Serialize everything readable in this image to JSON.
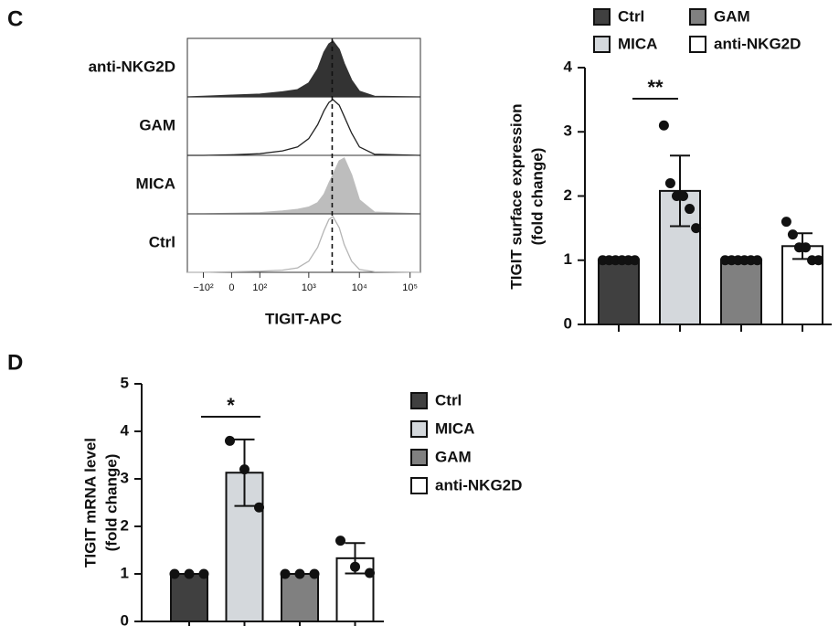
{
  "panel_labels": [
    "C",
    "D"
  ],
  "chart_data": [
    {
      "type": "density",
      "xlabel": "TIGIT-APC",
      "scale": "biexponential",
      "xlim": [
        -220,
        160000
      ],
      "xticks": [
        {
          "value": -100,
          "label": "−10²"
        },
        0,
        {
          "value": 100,
          "label": "10²"
        },
        {
          "value": 1000,
          "label": "10³"
        },
        {
          "value": 10000,
          "label": "10⁴"
        },
        {
          "value": 100000,
          "label": "10⁵"
        }
      ],
      "ylim": [
        0,
        100
      ],
      "x": [
        -100,
        0,
        100,
        300,
        600,
        1000,
        1500,
        2000,
        2500,
        3000,
        4000,
        5000,
        7000,
        10000,
        20000
      ],
      "reference_line": 2900,
      "series": [
        {
          "name": "anti-NKG2D",
          "color": "#333333",
          "filled": true,
          "values": [
            1,
            3,
            5,
            9,
            13,
            25,
            50,
            80,
            95,
            100,
            85,
            60,
            30,
            10,
            1
          ]
        },
        {
          "name": "GAM",
          "color": "#222222",
          "filled": false,
          "values": [
            0,
            1,
            3,
            8,
            15,
            30,
            55,
            80,
            95,
            100,
            90,
            70,
            40,
            15,
            2
          ]
        },
        {
          "name": "MICA",
          "color": "#bdbdbd",
          "filled": true,
          "values": [
            0,
            1,
            2,
            5,
            8,
            12,
            20,
            35,
            55,
            70,
            95,
            100,
            70,
            25,
            3
          ]
        },
        {
          "name": "Ctrl",
          "color": "#b5b5b5",
          "filled": false,
          "values": [
            0,
            1,
            2,
            4,
            8,
            20,
            45,
            75,
            95,
            100,
            80,
            50,
            20,
            5,
            1
          ]
        }
      ]
    },
    {
      "type": "bar",
      "ylabel": [
        "TIGIT surface expression",
        "(fold change)"
      ],
      "ylim": [
        0,
        4
      ],
      "yticks": [
        0,
        1,
        2,
        3,
        4
      ],
      "legend": "top",
      "annotations": [
        "**"
      ],
      "bars": [
        {
          "name": "Ctrl",
          "color": "#404040",
          "value": 1,
          "error": 0,
          "points": [
            1,
            1,
            1,
            1,
            1,
            1
          ]
        },
        {
          "name": "MICA",
          "color": "#d4d8dc",
          "value": 2.08,
          "error": 0.55,
          "points": [
            3.1,
            2.2,
            2.0,
            2.0,
            1.8,
            1.5
          ]
        },
        {
          "name": "GAM",
          "color": "#808080",
          "value": 1,
          "error": 0,
          "points": [
            1,
            1,
            1,
            1,
            1,
            1
          ]
        },
        {
          "name": "anti-NKG2D",
          "color": "#ffffff",
          "value": 1.22,
          "error": 0.2,
          "points": [
            1.6,
            1.4,
            1.2,
            1.2,
            1.0,
            1.0
          ]
        }
      ]
    },
    {
      "type": "bar",
      "ylabel": [
        "TIGIT mRNA level",
        "(fold change)"
      ],
      "ylim": [
        0,
        5
      ],
      "yticks": [
        0,
        1,
        2,
        3,
        4,
        5
      ],
      "legend": "right",
      "annotations": [
        "*"
      ],
      "bars": [
        {
          "name": "Ctrl",
          "color": "#404040",
          "value": 1,
          "error": 0,
          "points": [
            1,
            1,
            1
          ]
        },
        {
          "name": "MICA",
          "color": "#d4d8dc",
          "value": 3.13,
          "error": 0.7,
          "points": [
            3.8,
            3.2,
            2.4
          ]
        },
        {
          "name": "GAM",
          "color": "#808080",
          "value": 1,
          "error": 0,
          "points": [
            1,
            1,
            1
          ]
        },
        {
          "name": "anti-NKG2D",
          "color": "#ffffff",
          "value": 1.33,
          "error": 0.32,
          "points": [
            1.7,
            1.15,
            1.02
          ]
        }
      ]
    }
  ]
}
